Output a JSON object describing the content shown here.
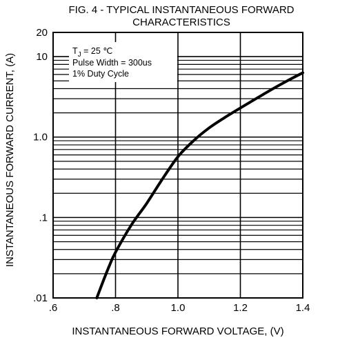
{
  "chart_data": {
    "type": "line",
    "title_line1": "FIG. 4 - TYPICAL INSTANTANEOUS FORWARD",
    "title_line2": "CHARACTERISTICS",
    "xlabel": "INSTANTANEOUS FORWARD VOLTAGE, (V)",
    "ylabel": "INSTANTANEOUS FORWARD CURRENT, (A)",
    "x_scale": "linear",
    "y_scale": "log",
    "xlim": [
      0.6,
      1.4
    ],
    "ylim": [
      0.01,
      20
    ],
    "x_ticks": [
      {
        "value": 0.6,
        "label": ".6"
      },
      {
        "value": 0.8,
        "label": ".8"
      },
      {
        "value": 1.0,
        "label": "1.0"
      },
      {
        "value": 1.2,
        "label": "1.2"
      },
      {
        "value": 1.4,
        "label": "1.4"
      }
    ],
    "y_ticks": [
      {
        "value": 20,
        "label": "20"
      },
      {
        "value": 10,
        "label": "10"
      },
      {
        "value": 1.0,
        "label": "1.0"
      },
      {
        "value": 0.1,
        "label": ".1"
      },
      {
        "value": 0.01,
        "label": ".01"
      }
    ],
    "grid": true,
    "annotations": {
      "temp_prefix": "T",
      "temp_sub": "J",
      "temp_value": " = 25 ℃",
      "pulse_width": "Pulse Width = 300us",
      "duty_cycle": "1% Duty Cycle"
    },
    "series": [
      {
        "color": "#000000",
        "x": [
          0.74,
          0.76,
          0.78,
          0.8,
          0.85,
          0.9,
          0.95,
          1.0,
          1.05,
          1.1,
          1.15,
          1.2,
          1.25,
          1.3,
          1.35,
          1.4
        ],
        "y": [
          0.01,
          0.016,
          0.025,
          0.037,
          0.08,
          0.15,
          0.3,
          0.57,
          0.9,
          1.3,
          1.75,
          2.3,
          3.0,
          3.9,
          5.0,
          6.3
        ]
      }
    ]
  }
}
